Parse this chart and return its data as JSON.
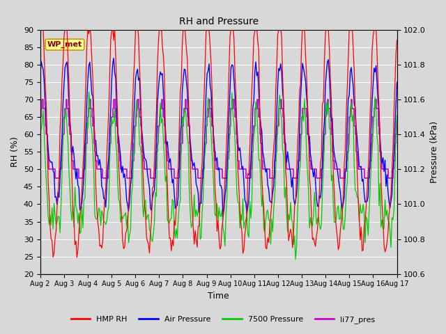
{
  "title": "RH and Pressure",
  "xlabel": "Time",
  "ylabel_left": "RH (%)",
  "ylabel_right": "Pressure (kPa)",
  "ylim_left": [
    20,
    90
  ],
  "ylim_right": [
    100.6,
    102.0
  ],
  "annotation_text": "WP_met",
  "bg_color": "#d8d8d8",
  "plot_bg": "#d8d8d8",
  "legend_labels": [
    "HMP RH",
    "Air Pressure",
    "7500 Pressure",
    "li77_pres"
  ],
  "legend_colors": [
    "#ff0000",
    "#0000ff",
    "#00cc00",
    "#cc00cc"
  ],
  "line_colors": {
    "hmp_rh": "#ff0000",
    "air_pressure": "#0000ff",
    "pressure_7500": "#00cc00",
    "li77_pres": "#cc00cc"
  },
  "xtick_labels": [
    "Aug 2",
    "Aug 3",
    "Aug 4",
    "Aug 5",
    "Aug 6",
    "Aug 7",
    "Aug 8",
    "Aug 9",
    "Aug 10",
    "Aug 11",
    "Aug 12",
    "Aug 13",
    "Aug 14",
    "Aug 15",
    "Aug 16",
    "Aug 17"
  ],
  "yticks_left": [
    20,
    25,
    30,
    35,
    40,
    45,
    50,
    55,
    60,
    65,
    70,
    75,
    80,
    85,
    90
  ],
  "yticks_right": [
    100.6,
    100.8,
    101.0,
    101.2,
    101.4,
    101.6,
    101.8,
    102.0
  ]
}
